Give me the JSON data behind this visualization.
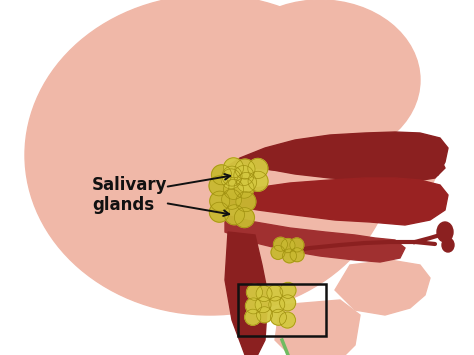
{
  "label_text": "Salivary\nglands",
  "label_fontsize": 12,
  "label_fontweight": "bold",
  "label_color": "#111111",
  "bg_color": "#ffffff",
  "head_fill": "#f0b8a8",
  "head_outline": "#e8a898",
  "inner_head": "#f5c8b8",
  "dark_red": "#8b2020",
  "med_red": "#a03030",
  "tongue_color": "#992222",
  "gland_color": "#c8b830",
  "gland_light": "#d4c840",
  "arrow_color": "#111111",
  "box_color": "#111111",
  "green_color": "#70bb60",
  "fig_width": 4.74,
  "fig_height": 3.55,
  "dpi": 100
}
